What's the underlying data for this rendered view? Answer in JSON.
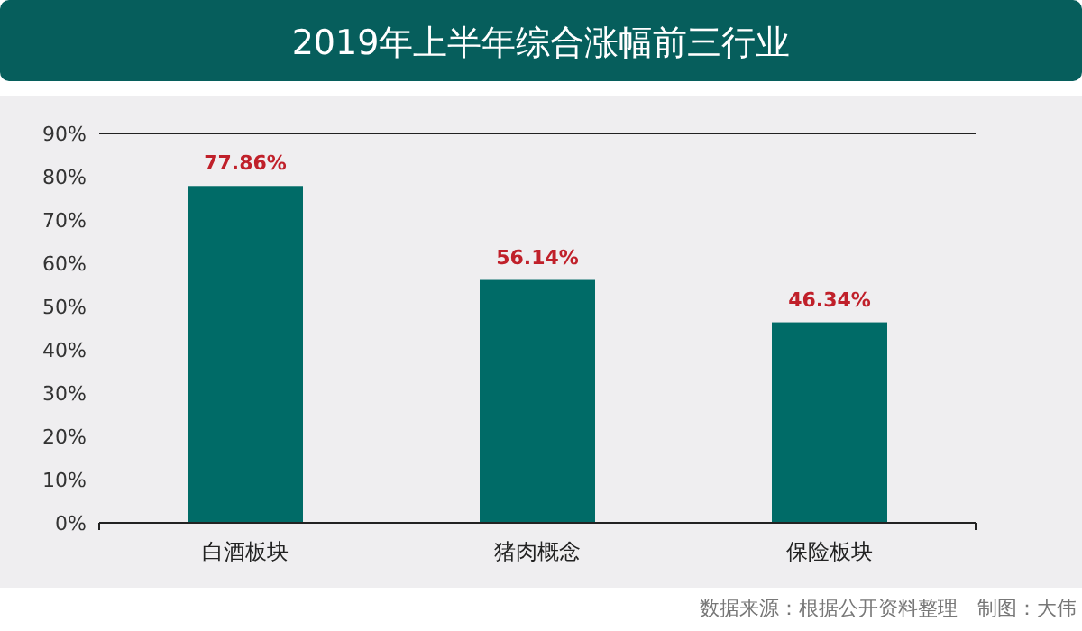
{
  "chart_data": {
    "type": "bar",
    "title": "2019年上半年综合涨幅前三行业",
    "categories": [
      "白酒板块",
      "猪肉概念",
      "保险板块"
    ],
    "values": [
      77.86,
      56.14,
      46.34
    ],
    "value_labels": [
      "77.86%",
      "56.14%",
      "46.34%"
    ],
    "color": "#006b67",
    "ylim": [
      0,
      90
    ],
    "yticks": [
      {
        "value": 0,
        "label": "0%"
      },
      {
        "value": 10,
        "label": "10%"
      },
      {
        "value": 20,
        "label": "20%"
      },
      {
        "value": 30,
        "label": "30%"
      },
      {
        "value": 40,
        "label": "40%"
      },
      {
        "value": 50,
        "label": "50%"
      },
      {
        "value": 60,
        "label": "60%"
      },
      {
        "value": 70,
        "label": "70%"
      },
      {
        "value": 80,
        "label": "80%"
      },
      {
        "value": 90,
        "label": "90%"
      }
    ],
    "ref_lines": [
      {
        "axis": "y",
        "value": 90,
        "color": "#222222"
      }
    ],
    "grid": false,
    "annotations": [
      "数据来源：根据公开资料整理　制图：大伟"
    ]
  }
}
